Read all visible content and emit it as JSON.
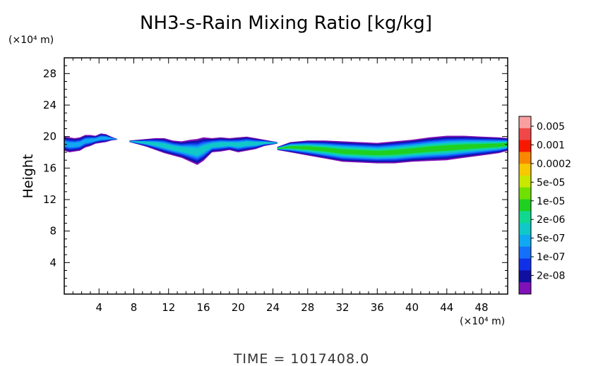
{
  "chart_data": {
    "type": "heatmap",
    "title": "NH3-s-Rain Mixing Ratio [kg/kg]",
    "ylabel": "Height",
    "y_unit": "(×10⁴ m)",
    "x_unit": "(×10⁴ m)",
    "xlim": [
      0,
      51
    ],
    "ylim": [
      0,
      30
    ],
    "x_ticks": [
      4,
      8,
      12,
      16,
      20,
      24,
      28,
      32,
      36,
      40,
      44,
      48
    ],
    "y_ticks": [
      4,
      8,
      12,
      16,
      20,
      24,
      28
    ],
    "colorbar": {
      "labels": [
        "0.005",
        "0.001",
        "0.0002",
        "5e-05",
        "1e-05",
        "2e-06",
        "5e-07",
        "1e-07",
        "2e-08"
      ],
      "colors_top_to_bottom": [
        "#f8a0a0",
        "#f04848",
        "#f81800",
        "#f88800",
        "#f8c800",
        "#c8e800",
        "#70e000",
        "#20d020",
        "#10d890",
        "#10c8c8",
        "#10a8f0",
        "#1470f8",
        "#1030e8",
        "#1010a0",
        "#8010b8"
      ]
    },
    "regions": [
      {
        "x0": 0,
        "x1": 6.1,
        "level": 2,
        "cells": [
          [
            0,
            20,
            18.2
          ],
          [
            0.6,
            19.9,
            18.0
          ],
          [
            1.2,
            19.8,
            18.1
          ],
          [
            1.8,
            19.9,
            18.2
          ],
          [
            2.4,
            20.2,
            18.6
          ],
          [
            3.0,
            20.2,
            18.8
          ],
          [
            3.6,
            20.1,
            19.1
          ],
          [
            4.2,
            20.4,
            19.2
          ],
          [
            4.8,
            20.3,
            19.3
          ],
          [
            5.4,
            20.0,
            19.5
          ],
          [
            6.1,
            19.7,
            19.6
          ]
        ]
      },
      {
        "x0": 7.5,
        "x1": 24.5,
        "level": 3,
        "cells": [
          [
            7.5,
            19.5,
            19.3
          ],
          [
            8.5,
            19.6,
            19.0
          ],
          [
            9.5,
            19.7,
            18.7
          ],
          [
            10.5,
            19.8,
            18.3
          ],
          [
            11.5,
            19.8,
            17.9
          ],
          [
            12.5,
            19.5,
            17.6
          ],
          [
            13.5,
            19.4,
            17.3
          ],
          [
            14.5,
            19.6,
            16.8
          ],
          [
            15.3,
            19.7,
            16.4
          ],
          [
            16,
            19.9,
            16.9
          ],
          [
            17,
            19.8,
            18.0
          ],
          [
            18,
            19.9,
            18.1
          ],
          [
            19,
            19.8,
            18.3
          ],
          [
            20,
            19.9,
            18.0
          ],
          [
            21,
            20.0,
            18.2
          ],
          [
            22,
            19.8,
            18.4
          ],
          [
            23,
            19.6,
            18.8
          ],
          [
            24.5,
            19.3,
            19.1
          ]
        ]
      },
      {
        "x0": 24.5,
        "x1": 51,
        "level": 5,
        "cells": [
          [
            24.5,
            18.7,
            18.3
          ],
          [
            26,
            19.3,
            18.0
          ],
          [
            28,
            19.5,
            17.6
          ],
          [
            30,
            19.5,
            17.2
          ],
          [
            32,
            19.4,
            16.8
          ],
          [
            34,
            19.3,
            16.7
          ],
          [
            36,
            19.2,
            16.6
          ],
          [
            38,
            19.4,
            16.6
          ],
          [
            40,
            19.6,
            16.8
          ],
          [
            42,
            19.9,
            16.9
          ],
          [
            44,
            20.1,
            17.0
          ],
          [
            46,
            20.1,
            17.3
          ],
          [
            48,
            20.0,
            17.6
          ],
          [
            50,
            19.9,
            17.9
          ],
          [
            51,
            19.8,
            18.2
          ]
        ]
      }
    ]
  },
  "time_label": "TIME = 1017408.0"
}
